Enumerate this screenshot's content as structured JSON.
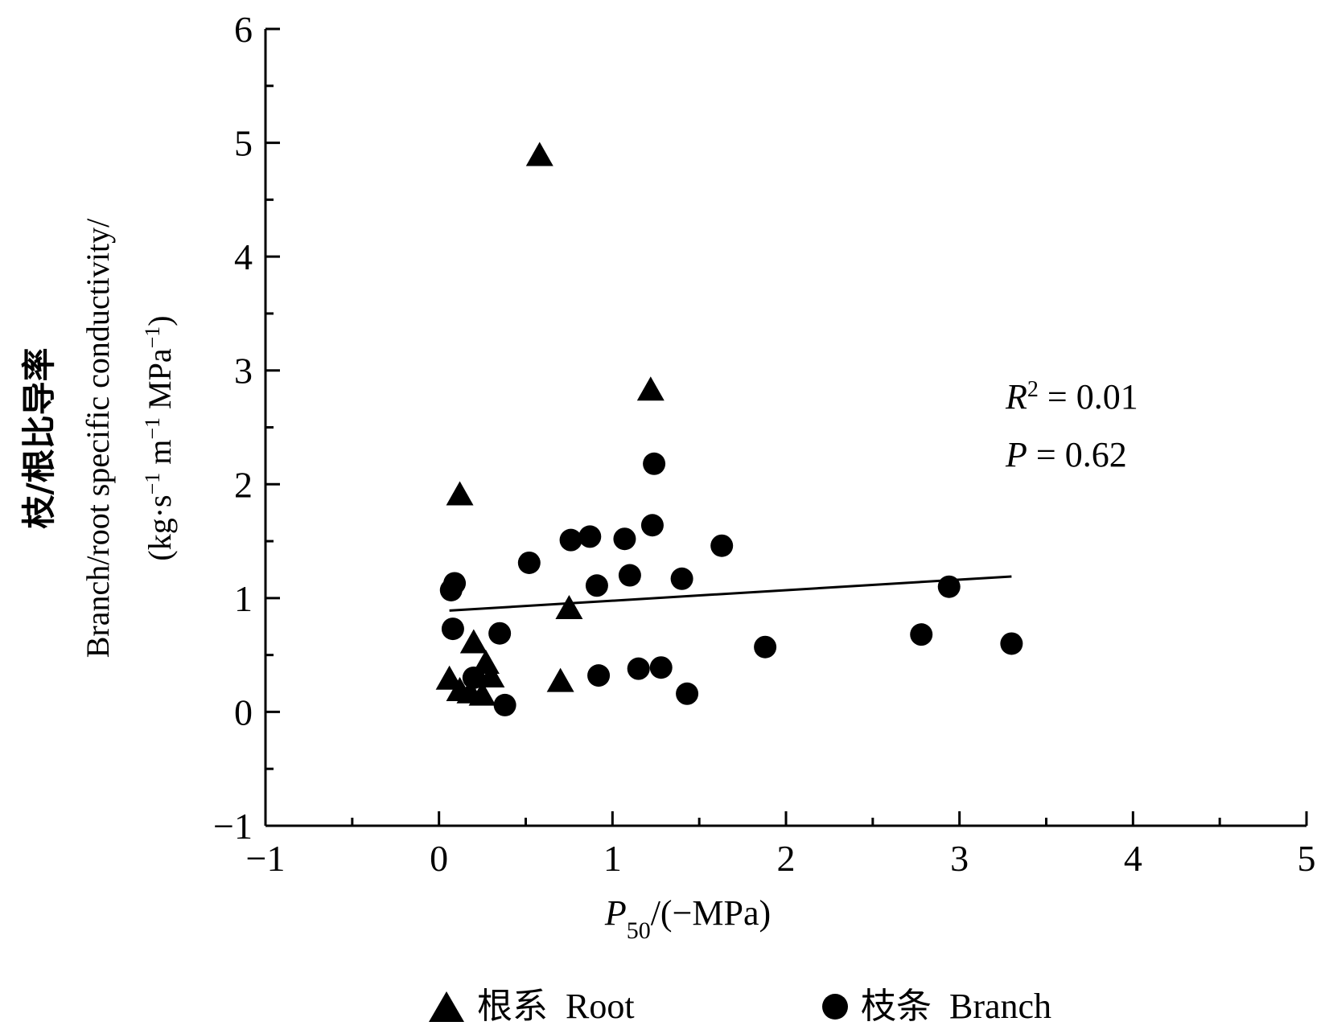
{
  "chart_data": {
    "type": "scatter",
    "xlabel": {
      "italic": "P",
      "sub": "50",
      "rest": "/(−MPa)"
    },
    "ylabel": {
      "line1": "枝/根比导率",
      "line2": "Branch/root specific conductivity/",
      "line3": {
        "a": "(kg·s",
        "b": "−1",
        "c": " m",
        "d": "−1",
        "e": " MPa",
        "f": "−1",
        "g": ")"
      }
    },
    "xlim": [
      -1,
      5
    ],
    "ylim": [
      -1,
      6
    ],
    "x_ticks": [
      -1,
      0,
      1,
      2,
      3,
      4,
      5
    ],
    "y_ticks": [
      -1,
      0,
      1,
      2,
      3,
      4,
      5,
      6
    ],
    "x_tick_labels": [
      "−1",
      "0",
      "1",
      "2",
      "3",
      "4",
      "5"
    ],
    "y_tick_labels": [
      "−1",
      "0",
      "1",
      "2",
      "3",
      "4",
      "5",
      "6"
    ],
    "grid": false,
    "legend_position": "bottom",
    "series": [
      {
        "name": "根系  Root",
        "marker": "triangle",
        "points": [
          [
            0.58,
            4.88
          ],
          [
            1.22,
            2.82
          ],
          [
            0.12,
            1.9
          ],
          [
            0.75,
            0.9
          ],
          [
            0.2,
            0.6
          ],
          [
            0.27,
            0.42
          ],
          [
            0.3,
            0.3
          ],
          [
            0.06,
            0.28
          ],
          [
            0.12,
            0.18
          ],
          [
            0.18,
            0.16
          ],
          [
            0.25,
            0.14
          ],
          [
            0.7,
            0.26
          ]
        ]
      },
      {
        "name": "枝条  Branch",
        "marker": "circle",
        "points": [
          [
            1.24,
            2.18
          ],
          [
            1.23,
            1.64
          ],
          [
            1.63,
            1.46
          ],
          [
            0.87,
            1.54
          ],
          [
            0.76,
            1.51
          ],
          [
            1.07,
            1.52
          ],
          [
            0.52,
            1.31
          ],
          [
            1.1,
            1.2
          ],
          [
            1.4,
            1.17
          ],
          [
            0.91,
            1.11
          ],
          [
            0.09,
            1.13
          ],
          [
            0.07,
            1.07
          ],
          [
            2.94,
            1.1
          ],
          [
            0.08,
            0.73
          ],
          [
            0.35,
            0.69
          ],
          [
            2.78,
            0.68
          ],
          [
            1.88,
            0.57
          ],
          [
            3.3,
            0.6
          ],
          [
            1.28,
            0.39
          ],
          [
            1.15,
            0.38
          ],
          [
            0.92,
            0.32
          ],
          [
            1.43,
            0.16
          ],
          [
            0.2,
            0.3
          ],
          [
            0.38,
            0.06
          ]
        ]
      }
    ],
    "fit_line": {
      "x": [
        0.06,
        3.3
      ],
      "y": [
        0.89,
        1.19
      ]
    },
    "annotations": {
      "r2": {
        "italic": "R",
        "sup": "2",
        "rest": " = 0.01"
      },
      "p": {
        "italic": "P",
        "rest": " = 0.62"
      }
    },
    "colors": {
      "marker": "#000000",
      "axis": "#000000"
    }
  }
}
